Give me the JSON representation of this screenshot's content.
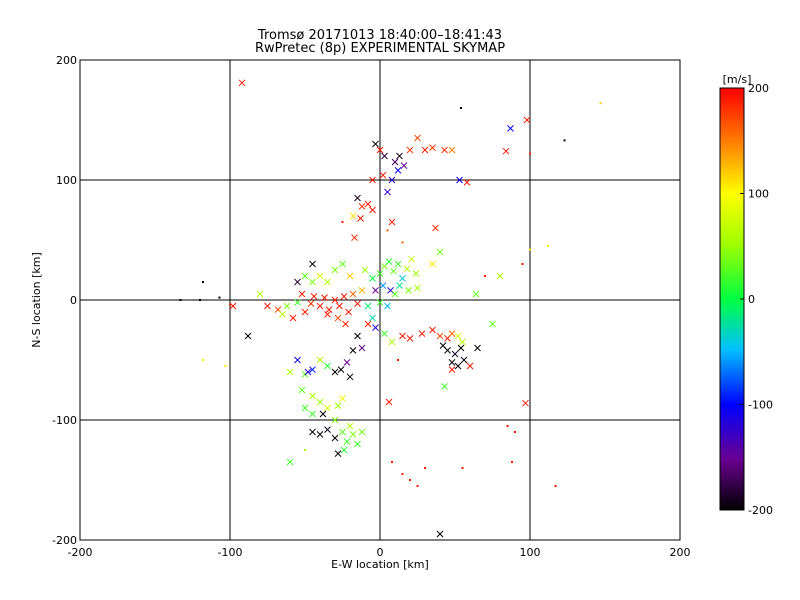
{
  "chart_data": {
    "type": "scatter",
    "title": "Tromsø 20171013 18:40:00–18:41:43",
    "subtitle": "RwPretec (8p) EXPERIMENTAL SKYMAP",
    "xlabel": "E-W location [km]",
    "ylabel": "N-S location [km]",
    "xlim": [
      -200,
      200
    ],
    "ylim": [
      -200,
      200
    ],
    "x_ticks": [
      "-200",
      "-100",
      "0",
      "100",
      "200"
    ],
    "y_ticks": [
      "-200",
      "-100",
      "0",
      "100",
      "200"
    ],
    "grid": "on",
    "colorbar": {
      "label": "[m/s]",
      "range": [
        -200,
        200
      ],
      "ticks": [
        "200",
        "100",
        "0",
        "-100",
        "-200"
      ]
    },
    "markers": {
      "x": "meteor echo (cross)",
      "dot": "meteor echo (small)"
    },
    "points": [
      {
        "x": -92,
        "y": 181,
        "v": 190,
        "m": "x"
      },
      {
        "x": -3,
        "y": 130,
        "v": -190,
        "m": "x"
      },
      {
        "x": 0,
        "y": 125,
        "v": 190,
        "m": "x"
      },
      {
        "x": 3,
        "y": 120,
        "v": -180,
        "m": "x"
      },
      {
        "x": 10,
        "y": 115,
        "v": -170,
        "m": "x"
      },
      {
        "x": 13,
        "y": 120,
        "v": -190,
        "m": "x"
      },
      {
        "x": 16,
        "y": 112,
        "v": -150,
        "m": "x"
      },
      {
        "x": 20,
        "y": 125,
        "v": 180,
        "m": "x"
      },
      {
        "x": 25,
        "y": 135,
        "v": 170,
        "m": "x"
      },
      {
        "x": 30,
        "y": 125,
        "v": 190,
        "m": "x"
      },
      {
        "x": 35,
        "y": 127,
        "v": 180,
        "m": "x"
      },
      {
        "x": 43,
        "y": 125,
        "v": 180,
        "m": "x"
      },
      {
        "x": 48,
        "y": 125,
        "v": 150,
        "m": "x"
      },
      {
        "x": 8,
        "y": 100,
        "v": -120,
        "m": "x"
      },
      {
        "x": 12,
        "y": 108,
        "v": -100,
        "m": "x"
      },
      {
        "x": 5,
        "y": 90,
        "v": -130,
        "m": "x"
      },
      {
        "x": 2,
        "y": 104,
        "v": 190,
        "m": "x"
      },
      {
        "x": -5,
        "y": 100,
        "v": 190,
        "m": "x"
      },
      {
        "x": 53,
        "y": 100,
        "v": -110,
        "m": "x"
      },
      {
        "x": 58,
        "y": 98,
        "v": 190,
        "m": "x"
      },
      {
        "x": 87,
        "y": 143,
        "v": -100,
        "m": "x"
      },
      {
        "x": 98,
        "y": 150,
        "v": 190,
        "m": "x"
      },
      {
        "x": 84,
        "y": 124,
        "v": 190,
        "m": "x"
      },
      {
        "x": 54,
        "y": 160,
        "v": -200,
        "m": "d"
      },
      {
        "x": 123,
        "y": 133,
        "v": -200,
        "m": "d"
      },
      {
        "x": 147,
        "y": 164,
        "v": 120,
        "m": "d"
      },
      {
        "x": 100,
        "y": 122,
        "v": 190,
        "m": "d"
      },
      {
        "x": -15,
        "y": 85,
        "v": -190,
        "m": "x"
      },
      {
        "x": -12,
        "y": 78,
        "v": 180,
        "m": "x"
      },
      {
        "x": -5,
        "y": 75,
        "v": 190,
        "m": "x"
      },
      {
        "x": -8,
        "y": 80,
        "v": 190,
        "m": "x"
      },
      {
        "x": -13,
        "y": 68,
        "v": 190,
        "m": "x"
      },
      {
        "x": -18,
        "y": 70,
        "v": 110,
        "m": "x"
      },
      {
        "x": 8,
        "y": 65,
        "v": 190,
        "m": "x"
      },
      {
        "x": -17,
        "y": 52,
        "v": 180,
        "m": "x"
      },
      {
        "x": 37,
        "y": 60,
        "v": 180,
        "m": "x"
      },
      {
        "x": -25,
        "y": 65,
        "v": 190,
        "m": "d"
      },
      {
        "x": 5,
        "y": 58,
        "v": 160,
        "m": "d"
      },
      {
        "x": 15,
        "y": 48,
        "v": 160,
        "m": "d"
      },
      {
        "x": -118,
        "y": 15,
        "v": -200,
        "m": "d"
      },
      {
        "x": -107,
        "y": 2,
        "v": -200,
        "m": "d"
      },
      {
        "x": -98,
        "y": -5,
        "v": 190,
        "m": "x"
      },
      {
        "x": -133,
        "y": 0,
        "v": -200,
        "m": "d"
      },
      {
        "x": -120,
        "y": 0,
        "v": -200,
        "m": "d"
      },
      {
        "x": -100,
        "y": -4,
        "v": 180,
        "m": "d"
      },
      {
        "x": -88,
        "y": -30,
        "v": -200,
        "m": "x"
      },
      {
        "x": -118,
        "y": -50,
        "v": 80,
        "m": "d"
      },
      {
        "x": -103,
        "y": -55,
        "v": 110,
        "m": "d"
      },
      {
        "x": -80,
        "y": 5,
        "v": 60,
        "m": "x"
      },
      {
        "x": -75,
        "y": -5,
        "v": 190,
        "m": "x"
      },
      {
        "x": -68,
        "y": -8,
        "v": 170,
        "m": "x"
      },
      {
        "x": -65,
        "y": -12,
        "v": 60,
        "m": "x"
      },
      {
        "x": -62,
        "y": -5,
        "v": 40,
        "m": "x"
      },
      {
        "x": -58,
        "y": -15,
        "v": 190,
        "m": "x"
      },
      {
        "x": -55,
        "y": -2,
        "v": 20,
        "m": "x"
      },
      {
        "x": -52,
        "y": 5,
        "v": 190,
        "m": "x"
      },
      {
        "x": -50,
        "y": -10,
        "v": 190,
        "m": "x"
      },
      {
        "x": -46,
        "y": -3,
        "v": 180,
        "m": "x"
      },
      {
        "x": -44,
        "y": 3,
        "v": 190,
        "m": "x"
      },
      {
        "x": -40,
        "y": -5,
        "v": 190,
        "m": "x"
      },
      {
        "x": -37,
        "y": 2,
        "v": 190,
        "m": "x"
      },
      {
        "x": -34,
        "y": -8,
        "v": 190,
        "m": "x"
      },
      {
        "x": -30,
        "y": 0,
        "v": 190,
        "m": "x"
      },
      {
        "x": -27,
        "y": -5,
        "v": 190,
        "m": "x"
      },
      {
        "x": -24,
        "y": 3,
        "v": 190,
        "m": "x"
      },
      {
        "x": -21,
        "y": -10,
        "v": 190,
        "m": "x"
      },
      {
        "x": -18,
        "y": 5,
        "v": 160,
        "m": "x"
      },
      {
        "x": -15,
        "y": -3,
        "v": 190,
        "m": "x"
      },
      {
        "x": -12,
        "y": 8,
        "v": 130,
        "m": "x"
      },
      {
        "x": -35,
        "y": -12,
        "v": 190,
        "m": "x"
      },
      {
        "x": -28,
        "y": -15,
        "v": 170,
        "m": "x"
      },
      {
        "x": -23,
        "y": -20,
        "v": 190,
        "m": "x"
      },
      {
        "x": -45,
        "y": 15,
        "v": 40,
        "m": "x"
      },
      {
        "x": -40,
        "y": 20,
        "v": 80,
        "m": "x"
      },
      {
        "x": -35,
        "y": 15,
        "v": 60,
        "m": "x"
      },
      {
        "x": -50,
        "y": 20,
        "v": 30,
        "m": "x"
      },
      {
        "x": -55,
        "y": 15,
        "v": -180,
        "m": "x"
      },
      {
        "x": -45,
        "y": 30,
        "v": -190,
        "m": "x"
      },
      {
        "x": -30,
        "y": 25,
        "v": 40,
        "m": "x"
      },
      {
        "x": -20,
        "y": 20,
        "v": 120,
        "m": "x"
      },
      {
        "x": -25,
        "y": 30,
        "v": 30,
        "m": "x"
      },
      {
        "x": -10,
        "y": 25,
        "v": 50,
        "m": "x"
      },
      {
        "x": -5,
        "y": 18,
        "v": 0,
        "m": "x"
      },
      {
        "x": 0,
        "y": 22,
        "v": 20,
        "m": "x"
      },
      {
        "x": 3,
        "y": 28,
        "v": 40,
        "m": "x"
      },
      {
        "x": 6,
        "y": 32,
        "v": 10,
        "m": "x"
      },
      {
        "x": 9,
        "y": 24,
        "v": 30,
        "m": "x"
      },
      {
        "x": 12,
        "y": 30,
        "v": 20,
        "m": "x"
      },
      {
        "x": 15,
        "y": 18,
        "v": -40,
        "m": "x"
      },
      {
        "x": 18,
        "y": 26,
        "v": 60,
        "m": "x"
      },
      {
        "x": 21,
        "y": 34,
        "v": 70,
        "m": "x"
      },
      {
        "x": 24,
        "y": 22,
        "v": 50,
        "m": "x"
      },
      {
        "x": 2,
        "y": 12,
        "v": -60,
        "m": "x"
      },
      {
        "x": 7,
        "y": 8,
        "v": -120,
        "m": "x"
      },
      {
        "x": -3,
        "y": 8,
        "v": -150,
        "m": "x"
      },
      {
        "x": 10,
        "y": 5,
        "v": 30,
        "m": "x"
      },
      {
        "x": 13,
        "y": 12,
        "v": -20,
        "m": "x"
      },
      {
        "x": 19,
        "y": 8,
        "v": 40,
        "m": "x"
      },
      {
        "x": 25,
        "y": 10,
        "v": 60,
        "m": "x"
      },
      {
        "x": 5,
        "y": -5,
        "v": -50,
        "m": "x"
      },
      {
        "x": -8,
        "y": -5,
        "v": -10,
        "m": "x"
      },
      {
        "x": 0,
        "y": -2,
        "v": 20,
        "m": "x"
      },
      {
        "x": -5,
        "y": -15,
        "v": -30,
        "m": "x"
      },
      {
        "x": -8,
        "y": -20,
        "v": 190,
        "m": "x"
      },
      {
        "x": -3,
        "y": -23,
        "v": -120,
        "m": "x"
      },
      {
        "x": 3,
        "y": -28,
        "v": 20,
        "m": "x"
      },
      {
        "x": 8,
        "y": -35,
        "v": 60,
        "m": "x"
      },
      {
        "x": 15,
        "y": -30,
        "v": 190,
        "m": "x"
      },
      {
        "x": 20,
        "y": -32,
        "v": 190,
        "m": "x"
      },
      {
        "x": 28,
        "y": -28,
        "v": 190,
        "m": "x"
      },
      {
        "x": -15,
        "y": -30,
        "v": -200,
        "m": "x"
      },
      {
        "x": -12,
        "y": -40,
        "v": -160,
        "m": "x"
      },
      {
        "x": -18,
        "y": -42,
        "v": -200,
        "m": "x"
      },
      {
        "x": -22,
        "y": -52,
        "v": -150,
        "m": "x"
      },
      {
        "x": -26,
        "y": -58,
        "v": -200,
        "m": "x"
      },
      {
        "x": -30,
        "y": -60,
        "v": -200,
        "m": "x"
      },
      {
        "x": -20,
        "y": -64,
        "v": -200,
        "m": "x"
      },
      {
        "x": -35,
        "y": -55,
        "v": 10,
        "m": "x"
      },
      {
        "x": -40,
        "y": -50,
        "v": 60,
        "m": "x"
      },
      {
        "x": -45,
        "y": -58,
        "v": -90,
        "m": "x"
      },
      {
        "x": -50,
        "y": -62,
        "v": 30,
        "m": "x"
      },
      {
        "x": -55,
        "y": -50,
        "v": -110,
        "m": "x"
      },
      {
        "x": -60,
        "y": -60,
        "v": 60,
        "m": "x"
      },
      {
        "x": -52,
        "y": -75,
        "v": 30,
        "m": "x"
      },
      {
        "x": -45,
        "y": -80,
        "v": 60,
        "m": "x"
      },
      {
        "x": -40,
        "y": -85,
        "v": 50,
        "m": "x"
      },
      {
        "x": -35,
        "y": -90,
        "v": 80,
        "m": "x"
      },
      {
        "x": -28,
        "y": -88,
        "v": 50,
        "m": "x"
      },
      {
        "x": -25,
        "y": -82,
        "v": 90,
        "m": "x"
      },
      {
        "x": -50,
        "y": -90,
        "v": 20,
        "m": "x"
      },
      {
        "x": -45,
        "y": -95,
        "v": 20,
        "m": "x"
      },
      {
        "x": -38,
        "y": -95,
        "v": -200,
        "m": "x"
      },
      {
        "x": -30,
        "y": -100,
        "v": 40,
        "m": "x"
      },
      {
        "x": -45,
        "y": -110,
        "v": -200,
        "m": "x"
      },
      {
        "x": -40,
        "y": -112,
        "v": -200,
        "m": "x"
      },
      {
        "x": -35,
        "y": -108,
        "v": -190,
        "m": "x"
      },
      {
        "x": -30,
        "y": -115,
        "v": -200,
        "m": "x"
      },
      {
        "x": -25,
        "y": -110,
        "v": 30,
        "m": "x"
      },
      {
        "x": -22,
        "y": -118,
        "v": 20,
        "m": "x"
      },
      {
        "x": -18,
        "y": -112,
        "v": 40,
        "m": "x"
      },
      {
        "x": -24,
        "y": -125,
        "v": 10,
        "m": "x"
      },
      {
        "x": -15,
        "y": -120,
        "v": 20,
        "m": "x"
      },
      {
        "x": -12,
        "y": -110,
        "v": 40,
        "m": "x"
      },
      {
        "x": -20,
        "y": -105,
        "v": 60,
        "m": "x"
      },
      {
        "x": -60,
        "y": -135,
        "v": 20,
        "m": "x"
      },
      {
        "x": -28,
        "y": -128,
        "v": -200,
        "m": "x"
      },
      {
        "x": -50,
        "y": -125,
        "v": 60,
        "m": "d"
      },
      {
        "x": -48,
        "y": -60,
        "v": -120,
        "m": "x"
      },
      {
        "x": 6,
        "y": -85,
        "v": 190,
        "m": "x"
      },
      {
        "x": 12,
        "y": -50,
        "v": 190,
        "m": "d"
      },
      {
        "x": 35,
        "y": -25,
        "v": 190,
        "m": "x"
      },
      {
        "x": 40,
        "y": -30,
        "v": 170,
        "m": "x"
      },
      {
        "x": 45,
        "y": -32,
        "v": 190,
        "m": "x"
      },
      {
        "x": 48,
        "y": -28,
        "v": 160,
        "m": "x"
      },
      {
        "x": 52,
        "y": -30,
        "v": 80,
        "m": "x"
      },
      {
        "x": 55,
        "y": -35,
        "v": 60,
        "m": "x"
      },
      {
        "x": 42,
        "y": -38,
        "v": -200,
        "m": "x"
      },
      {
        "x": 45,
        "y": -42,
        "v": -200,
        "m": "x"
      },
      {
        "x": 50,
        "y": -45,
        "v": -190,
        "m": "x"
      },
      {
        "x": 54,
        "y": -40,
        "v": -200,
        "m": "x"
      },
      {
        "x": 48,
        "y": -52,
        "v": -200,
        "m": "x"
      },
      {
        "x": 52,
        "y": -55,
        "v": -200,
        "m": "x"
      },
      {
        "x": 56,
        "y": -50,
        "v": -190,
        "m": "x"
      },
      {
        "x": 65,
        "y": -40,
        "v": -200,
        "m": "x"
      },
      {
        "x": 43,
        "y": -72,
        "v": 20,
        "m": "x"
      },
      {
        "x": 60,
        "y": -55,
        "v": 190,
        "m": "x"
      },
      {
        "x": 48,
        "y": -58,
        "v": 190,
        "m": "x"
      },
      {
        "x": 97,
        "y": -86,
        "v": 190,
        "m": "x"
      },
      {
        "x": 75,
        "y": -20,
        "v": 30,
        "m": "x"
      },
      {
        "x": 64,
        "y": 5,
        "v": 30,
        "m": "x"
      },
      {
        "x": 70,
        "y": 20,
        "v": 190,
        "m": "d"
      },
      {
        "x": 80,
        "y": 20,
        "v": 60,
        "m": "x"
      },
      {
        "x": 40,
        "y": 40,
        "v": 40,
        "m": "x"
      },
      {
        "x": 35,
        "y": 30,
        "v": 110,
        "m": "x"
      },
      {
        "x": 40,
        "y": -195,
        "v": -200,
        "m": "x"
      },
      {
        "x": 15,
        "y": -145,
        "v": 190,
        "m": "d"
      },
      {
        "x": 20,
        "y": -150,
        "v": 190,
        "m": "d"
      },
      {
        "x": 25,
        "y": -155,
        "v": 190,
        "m": "d"
      },
      {
        "x": 30,
        "y": -140,
        "v": 190,
        "m": "d"
      },
      {
        "x": 8,
        "y": -135,
        "v": 190,
        "m": "d"
      },
      {
        "x": 55,
        "y": -140,
        "v": 190,
        "m": "d"
      },
      {
        "x": 85,
        "y": -105,
        "v": 190,
        "m": "d"
      },
      {
        "x": 90,
        "y": -110,
        "v": 190,
        "m": "d"
      },
      {
        "x": 88,
        "y": -135,
        "v": 190,
        "m": "d"
      },
      {
        "x": 117,
        "y": -155,
        "v": 190,
        "m": "d"
      },
      {
        "x": 100,
        "y": 42,
        "v": 110,
        "m": "d"
      },
      {
        "x": 112,
        "y": 45,
        "v": 90,
        "m": "d"
      },
      {
        "x": 95,
        "y": 30,
        "v": 190,
        "m": "d"
      }
    ]
  }
}
